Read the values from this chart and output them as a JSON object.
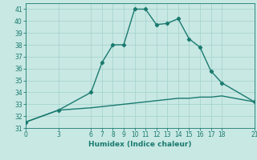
{
  "xlabel": "Humidex (Indice chaleur)",
  "line1_x": [
    0,
    3,
    6,
    7,
    8,
    9,
    10,
    11,
    12,
    13,
    14,
    15,
    16,
    17,
    18,
    21
  ],
  "line1_y": [
    31.5,
    32.5,
    34,
    36.5,
    38,
    38,
    41,
    41,
    39.7,
    39.8,
    40.2,
    38.5,
    37.8,
    35.8,
    34.8,
    33.2
  ],
  "line2_x": [
    0,
    3,
    6,
    7,
    8,
    9,
    10,
    11,
    12,
    13,
    14,
    15,
    16,
    17,
    18,
    21
  ],
  "line2_y": [
    31.5,
    32.5,
    32.7,
    32.8,
    32.9,
    33.0,
    33.1,
    33.2,
    33.3,
    33.4,
    33.5,
    33.5,
    33.6,
    33.6,
    33.7,
    33.2
  ],
  "line_color": "#1a7a6e",
  "bg_color": "#c8e8e4",
  "grid_color": "#a8d4ce",
  "tick_color": "#1a7a6e",
  "label_color": "#1a7a6e",
  "xlim": [
    0,
    21
  ],
  "ylim": [
    31,
    41.5
  ],
  "xticks": [
    0,
    3,
    6,
    7,
    8,
    9,
    10,
    11,
    12,
    13,
    14,
    15,
    16,
    17,
    18,
    21
  ],
  "yticks": [
    31,
    32,
    33,
    34,
    35,
    36,
    37,
    38,
    39,
    40,
    41
  ],
  "marker": "D",
  "markersize": 2.2,
  "linewidth": 1.0,
  "tick_fontsize": 5.5,
  "xlabel_fontsize": 6.5
}
